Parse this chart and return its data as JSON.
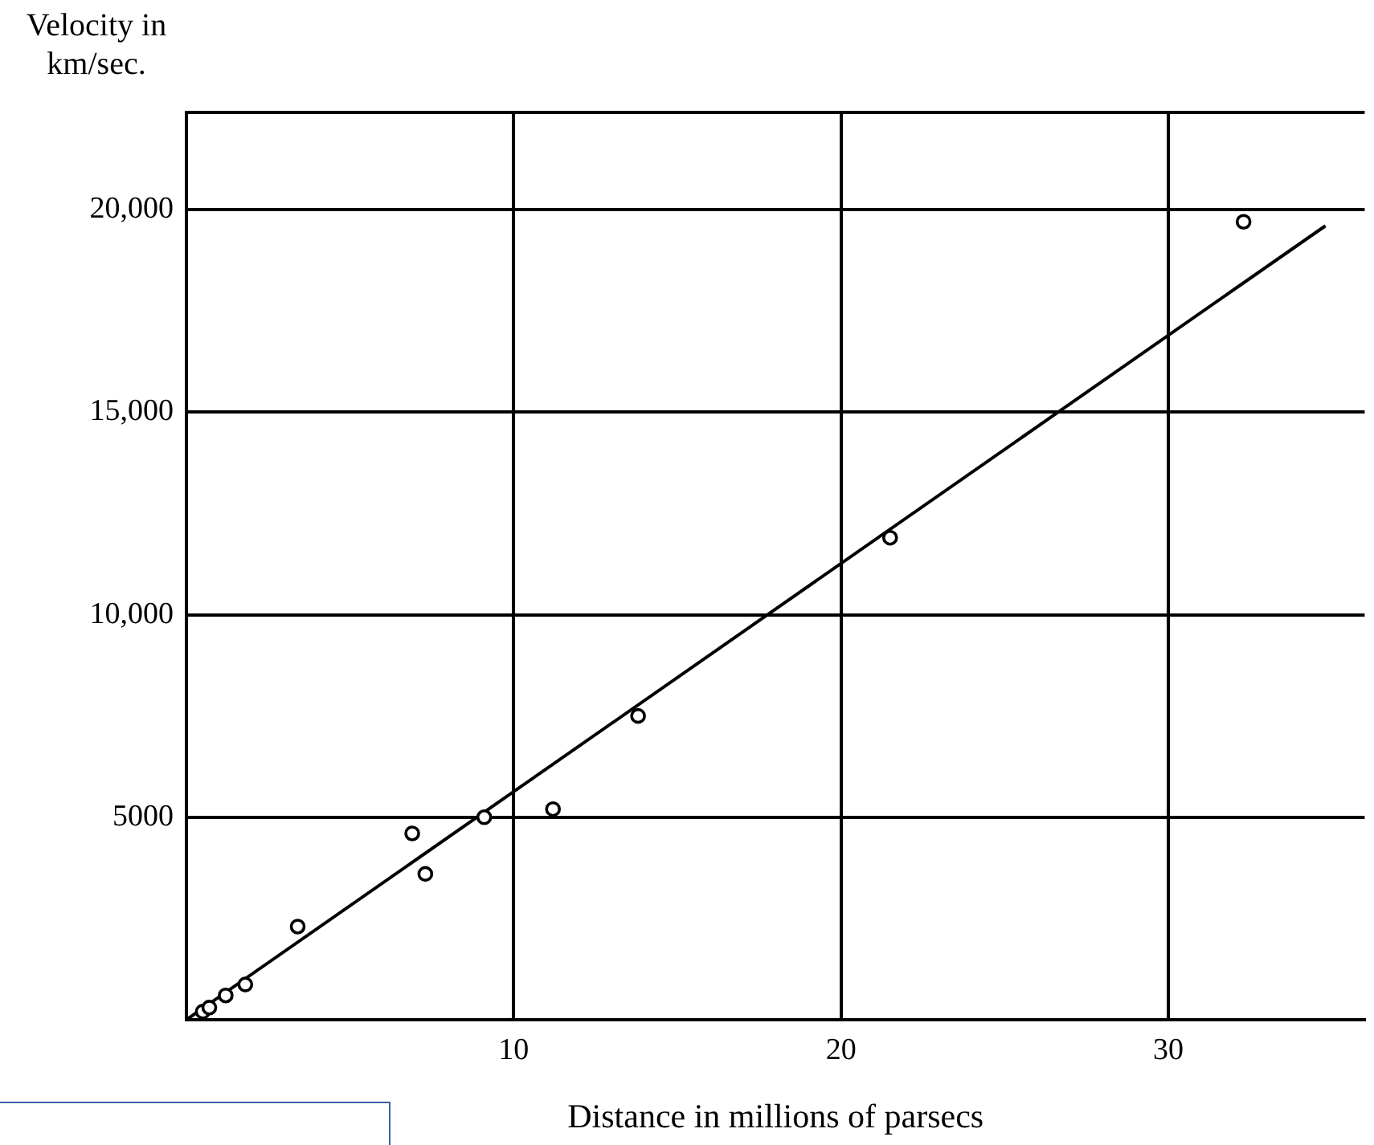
{
  "chart_data": {
    "type": "scatter",
    "xlabel": "Distance in millions of parsecs",
    "ylabel": "Velocity in km/sec.",
    "xlim": [
      0,
      36
    ],
    "ylim": [
      0,
      22400
    ],
    "xticks": [
      10,
      20,
      30
    ],
    "yticks": [
      {
        "value": 5000,
        "label": "5000"
      },
      {
        "value": 10000,
        "label": "10,000"
      },
      {
        "value": 15000,
        "label": "15,000"
      },
      {
        "value": 20000,
        "label": "20,000"
      }
    ],
    "grid": true,
    "series": [
      {
        "type": "scatter",
        "color": "#000000",
        "marker": "circle",
        "x": [
          0.5,
          0.7,
          1.2,
          1.8,
          3.4,
          6.9,
          7.3,
          9.1,
          11.2,
          13.8,
          21.5,
          32.3
        ],
        "values": [
          200,
          300,
          600,
          870,
          2300,
          4600,
          3600,
          5000,
          5200,
          7500,
          11900,
          19700
        ]
      },
      {
        "type": "line",
        "color": "#000000",
        "x": [
          0,
          34.8
        ],
        "values": [
          0,
          19600
        ]
      }
    ]
  }
}
